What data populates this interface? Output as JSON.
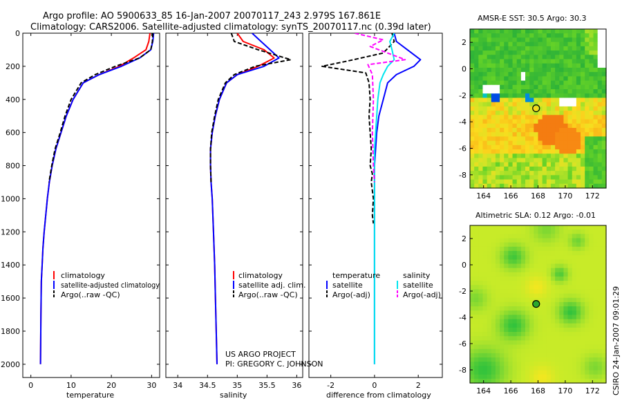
{
  "header": {
    "line1": "Argo profile: AO 5900633_85 16-Jan-2007 20070117_243 2.979S 167.861E",
    "line2": "Climatology: CARS2006. Satellite-adjusted climatology: synTS_20070117.nc (0.39d later)"
  },
  "credit": {
    "project": "US ARGO PROJECT",
    "pi": "PI: GREGORY C. JOHNSON",
    "stamp": "CSIRO 24-Jan-2007 09:01:29"
  },
  "chart_data": [
    {
      "type": "line",
      "name": "temperature",
      "xlabel": "temperature",
      "ylabel": "",
      "xlim": [
        -2,
        32
      ],
      "ylim": [
        2080,
        0
      ],
      "xticks": [
        0,
        10,
        20,
        30
      ],
      "yticks": [
        0,
        200,
        400,
        600,
        800,
        1000,
        1200,
        1400,
        1600,
        1800,
        2000
      ],
      "legend": [
        "climatology",
        "satellite-adjusted climatology",
        "Argo(..raw -QC)"
      ],
      "series": [
        {
          "name": "climatology",
          "color": "#ff0000",
          "dash": "solid",
          "x": [
            29.6,
            29.3,
            28.6,
            25.5,
            22.0,
            17.0,
            13.0,
            10.5,
            8.8,
            7.5,
            6.2,
            5.3,
            4.6,
            4.1,
            3.7,
            3.3,
            3.0,
            2.8,
            2.6,
            2.5,
            2.4
          ],
          "y": [
            0,
            50,
            100,
            150,
            200,
            250,
            300,
            400,
            500,
            600,
            700,
            800,
            900,
            1000,
            1100,
            1200,
            1300,
            1400,
            1500,
            1700,
            2000
          ]
        },
        {
          "name": "satellite-adjusted climatology",
          "color": "#0000ff",
          "dash": "solid",
          "x": [
            30.5,
            30.3,
            29.8,
            27.0,
            22.5,
            17.0,
            13.0,
            10.5,
            8.8,
            7.5,
            6.2,
            5.3,
            4.6,
            4.1,
            3.7,
            3.3,
            3.0,
            2.8,
            2.6,
            2.5,
            2.4
          ],
          "y": [
            0,
            50,
            100,
            150,
            200,
            250,
            300,
            400,
            500,
            600,
            700,
            800,
            900,
            1000,
            1100,
            1200,
            1300,
            1400,
            1500,
            1700,
            2000
          ]
        },
        {
          "name": "Argo(..raw -QC)",
          "color": "#000000",
          "dash": "dashed",
          "x": [
            30.3,
            30.2,
            29.8,
            27.0,
            21.0,
            16.0,
            12.5,
            10.0,
            8.5,
            7.3,
            6.0,
            5.2,
            4.5
          ],
          "y": [
            0,
            50,
            100,
            150,
            200,
            250,
            300,
            400,
            500,
            600,
            700,
            800,
            900
          ]
        }
      ]
    },
    {
      "type": "line",
      "name": "salinity",
      "xlabel": "salinity",
      "xlim": [
        33.8,
        36.1
      ],
      "ylim": [
        2080,
        0
      ],
      "xticks": [
        34,
        34.5,
        35,
        35.5,
        36
      ],
      "legend": [
        "climatology",
        "satellite adj. clim.",
        "Argo(..raw -QC)"
      ],
      "series": [
        {
          "name": "climatology",
          "color": "#ff0000",
          "dash": "solid",
          "x": [
            35.0,
            35.1,
            35.45,
            35.62,
            35.35,
            35.0,
            34.82,
            34.7,
            34.63,
            34.58,
            34.55,
            34.55,
            34.56,
            34.58,
            34.6,
            34.62,
            34.64,
            34.66
          ],
          "y": [
            0,
            50,
            100,
            150,
            200,
            250,
            300,
            400,
            500,
            600,
            700,
            800,
            900,
            1000,
            1200,
            1400,
            1700,
            2000
          ]
        },
        {
          "name": "satellite adj. clim.",
          "color": "#0000ff",
          "dash": "solid",
          "x": [
            35.25,
            35.4,
            35.55,
            35.7,
            35.45,
            35.0,
            34.82,
            34.7,
            34.63,
            34.58,
            34.55,
            34.55,
            34.56,
            34.58,
            34.6,
            34.62,
            34.64,
            34.66
          ],
          "y": [
            0,
            50,
            100,
            150,
            200,
            250,
            300,
            400,
            500,
            600,
            700,
            800,
            900,
            1000,
            1200,
            1400,
            1700,
            2000
          ]
        },
        {
          "name": "Argo(..raw -QC)",
          "color": "#000000",
          "dash": "dashed",
          "x": [
            34.9,
            34.95,
            35.35,
            35.9,
            35.3,
            34.95,
            34.8,
            34.68,
            34.62,
            34.57,
            34.55,
            34.55,
            34.56
          ],
          "y": [
            0,
            50,
            100,
            160,
            200,
            250,
            300,
            400,
            500,
            600,
            700,
            800,
            900
          ]
        }
      ]
    },
    {
      "type": "line",
      "name": "difference from climatology",
      "xlabel": "difference from climatology",
      "xlim": [
        -3.0,
        3.1
      ],
      "ylim": [
        2080,
        0
      ],
      "xticks": [
        -2,
        0,
        2
      ],
      "legend_titles": [
        "temperature",
        "salinity"
      ],
      "legend": [
        "satellite",
        "Argo(-adj)",
        "satellite",
        "Argo(-adj)"
      ],
      "series": [
        {
          "name": "temperature satellite",
          "color": "#0000ff",
          "dash": "solid",
          "x": [
            0.9,
            1.0,
            1.5,
            2.1,
            1.8,
            1.0,
            0.6,
            0.4,
            0.2,
            0.1,
            0.05,
            0.0,
            0.0,
            0.0,
            0.0
          ],
          "y": [
            0,
            50,
            100,
            160,
            200,
            250,
            300,
            400,
            500,
            600,
            700,
            800,
            1000,
            1500,
            2000
          ]
        },
        {
          "name": "temperature Argo(-adj)",
          "color": "#000000",
          "dash": "dashed",
          "x": [
            0.8,
            0.9,
            0.4,
            -1.3,
            -2.4,
            -0.4,
            -0.25,
            -0.2,
            -0.25,
            -0.2,
            -0.15,
            -0.2,
            -0.1,
            -0.15,
            -0.05,
            -0.1,
            -0.05
          ],
          "y": [
            0,
            50,
            120,
            170,
            200,
            240,
            300,
            400,
            500,
            600,
            700,
            800,
            850,
            900,
            1000,
            1100,
            1150
          ]
        },
        {
          "name": "salinity satellite",
          "color": "#00e5ee",
          "dash": "solid",
          "x": [
            0.9,
            0.7,
            0.8,
            0.9,
            0.6,
            0.4,
            0.25,
            0.15,
            0.1,
            0.05,
            0.0,
            0.0,
            0.0
          ],
          "y": [
            0,
            50,
            100,
            160,
            200,
            250,
            300,
            400,
            500,
            600,
            700,
            1000,
            2000
          ]
        },
        {
          "name": "salinity Argo(-adj)",
          "color": "#ff00ff",
          "dash": "dashed",
          "x": [
            -0.9,
            0.4,
            -0.2,
            0.8,
            1.4,
            -0.3,
            -0.1,
            -0.05,
            -0.1,
            -0.05,
            0.0
          ],
          "y": [
            0,
            40,
            80,
            130,
            160,
            190,
            250,
            400,
            600,
            800,
            900
          ]
        }
      ]
    },
    {
      "type": "heatmap",
      "name": "AMSR-E SST",
      "title": "AMSR-E SST: 30.5 Argo: 30.3",
      "xlim": [
        163,
        173
      ],
      "ylim": [
        -9,
        3
      ],
      "xticks": [
        164,
        166,
        168,
        170,
        172
      ],
      "yticks": [
        -8,
        -6,
        -4,
        -2,
        0,
        2
      ],
      "marker": {
        "lon": 167.861,
        "lat": -2.979
      }
    },
    {
      "type": "heatmap",
      "name": "Altimetric SLA",
      "title": "Altimetric SLA: 0.12 Argo: -0.01",
      "xlim": [
        163,
        173
      ],
      "ylim": [
        -9,
        3
      ],
      "xticks": [
        164,
        166,
        168,
        170,
        172
      ],
      "yticks": [
        -8,
        -6,
        -4,
        -2,
        0,
        2
      ],
      "marker": {
        "lon": 167.861,
        "lat": -2.979
      }
    }
  ]
}
